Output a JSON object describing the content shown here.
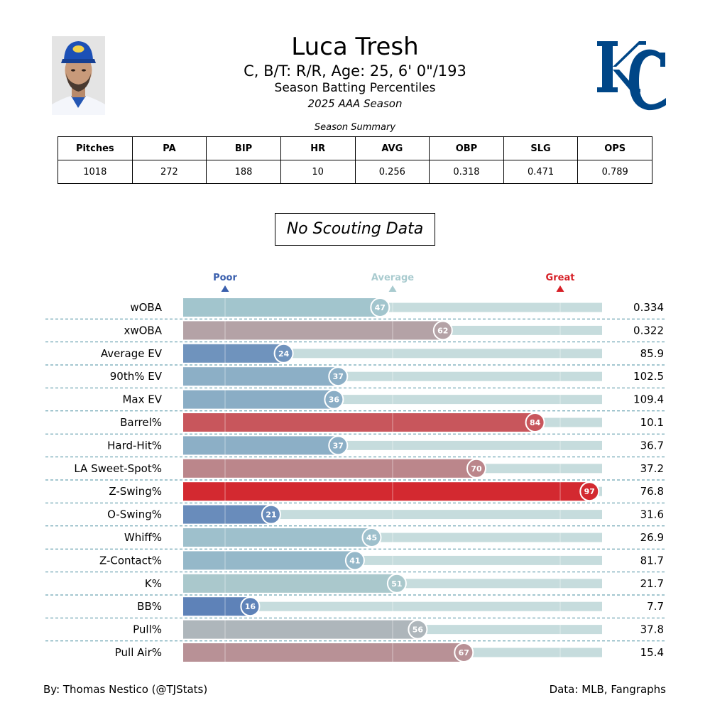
{
  "header": {
    "name": "Luca Tresh",
    "bio": "C, B/T: R/R, Age: 25, 6' 0\"/193",
    "subtitle": "Season Batting Percentiles",
    "season": "2025 AAA Season"
  },
  "summary": {
    "title": "Season Summary",
    "columns": [
      "Pitches",
      "PA",
      "BIP",
      "HR",
      "AVG",
      "OBP",
      "SLG",
      "OPS"
    ],
    "values": [
      "1018",
      "272",
      "188",
      "10",
      "0.256",
      "0.318",
      "0.471",
      "0.789"
    ]
  },
  "scouting_note": "No Scouting Data",
  "colors": {
    "poor": "#3a5fad",
    "average": "#a9cbcf",
    "great": "#d61f26",
    "track": "#c6dcdd"
  },
  "chart_data": {
    "type": "bar",
    "orientation": "horizontal",
    "xlim": [
      0,
      100
    ],
    "markers": [
      {
        "label": "Poor",
        "value": 10,
        "color": "#3a5fad"
      },
      {
        "label": "Average",
        "value": 50,
        "color": "#a9cbcf"
      },
      {
        "label": "Great",
        "value": 90,
        "color": "#d61f26"
      }
    ],
    "metrics": [
      {
        "label": "wOBA",
        "percentile": 47,
        "value": "0.334"
      },
      {
        "label": "xwOBA",
        "percentile": 62,
        "value": "0.322"
      },
      {
        "label": "Average EV",
        "percentile": 24,
        "value": "85.9"
      },
      {
        "label": "90th% EV",
        "percentile": 37,
        "value": "102.5"
      },
      {
        "label": "Max EV",
        "percentile": 36,
        "value": "109.4"
      },
      {
        "label": "Barrel%",
        "percentile": 84,
        "value": "10.1"
      },
      {
        "label": "Hard-Hit%",
        "percentile": 37,
        "value": "36.7"
      },
      {
        "label": "LA Sweet-Spot%",
        "percentile": 70,
        "value": "37.2"
      },
      {
        "label": "Z-Swing%",
        "percentile": 97,
        "value": "76.8"
      },
      {
        "label": "O-Swing%",
        "percentile": 21,
        "value": "31.6"
      },
      {
        "label": "Whiff%",
        "percentile": 45,
        "value": "26.9"
      },
      {
        "label": "Z-Contact%",
        "percentile": 41,
        "value": "81.7"
      },
      {
        "label": "K%",
        "percentile": 51,
        "value": "21.7"
      },
      {
        "label": "BB%",
        "percentile": 16,
        "value": "7.7"
      },
      {
        "label": "Pull%",
        "percentile": 56,
        "value": "37.8"
      },
      {
        "label": "Pull Air%",
        "percentile": 67,
        "value": "15.4"
      }
    ]
  },
  "footer": {
    "credit": "By: Thomas Nestico (@TJStats)",
    "source": "Data: MLB, Fangraphs"
  }
}
